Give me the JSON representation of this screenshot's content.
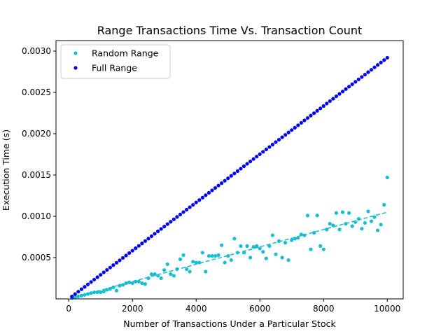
{
  "chart_data": {
    "type": "scatter",
    "title": "Range Transactions Time Vs. Transaction Count",
    "xlabel": "Number of Transactions Under a Particular Stock",
    "ylabel": "Execution Time (s)",
    "xlim": [
      -400,
      10500
    ],
    "ylim": [
      0,
      0.003
    ],
    "x_ticks": [
      0,
      2000,
      4000,
      6000,
      8000,
      10000
    ],
    "y_ticks": [
      0.0005,
      0.001,
      0.0015,
      0.002,
      0.0025,
      0.003
    ],
    "x_tick_labels": [
      "0",
      "2000",
      "4000",
      "6000",
      "8000",
      "10000"
    ],
    "y_tick_labels": [
      "0.0005",
      "0.0010",
      "0.0015",
      "0.0020",
      "0.0025",
      "0.0030"
    ],
    "legend_position": "top-left",
    "series": [
      {
        "name": "Random Range",
        "color": "#17becf",
        "marker": "dot",
        "fit_line": {
          "style": "dashed",
          "from": [
            100,
            1e-05
          ],
          "to": [
            10000,
            0.00105
          ]
        },
        "x": [
          100,
          200,
          300,
          400,
          500,
          600,
          700,
          800,
          900,
          1000,
          1100,
          1200,
          1300,
          1400,
          1500,
          1600,
          1700,
          1800,
          1900,
          2000,
          2100,
          2200,
          2300,
          2400,
          2500,
          2600,
          2700,
          2800,
          2900,
          3000,
          3100,
          3200,
          3300,
          3400,
          3500,
          3600,
          3700,
          3800,
          3900,
          4000,
          4100,
          4200,
          4300,
          4400,
          4500,
          4600,
          4700,
          4800,
          4900,
          5000,
          5100,
          5200,
          5300,
          5400,
          5500,
          5600,
          5700,
          5800,
          5900,
          6000,
          6100,
          6200,
          6300,
          6400,
          6500,
          6600,
          6700,
          6800,
          6900,
          7000,
          7100,
          7200,
          7300,
          7400,
          7500,
          7600,
          7700,
          7800,
          7900,
          8000,
          8100,
          8200,
          8300,
          8400,
          8500,
          8600,
          8700,
          8800,
          8900,
          9000,
          9100,
          9200,
          9300,
          9400,
          9500,
          9600,
          9700,
          9800,
          9900,
          10000
        ],
        "y": [
          1e-05,
          2e-05,
          3e-05,
          4e-05,
          5e-05,
          6e-05,
          7e-05,
          8e-05,
          8e-05,
          8e-05,
          9e-05,
          0.00011,
          0.00012,
          0.00014,
          0.0001,
          0.00016,
          0.00017,
          0.00019,
          0.0002,
          0.00019,
          0.00021,
          0.00021,
          0.00019,
          0.00018,
          0.00025,
          0.0003,
          0.0003,
          0.00028,
          0.00025,
          0.00035,
          0.00042,
          0.0003,
          0.00028,
          0.00036,
          0.00048,
          0.00053,
          0.00036,
          0.00033,
          0.00045,
          0.00044,
          0.00044,
          0.00056,
          0.00033,
          0.00052,
          0.00052,
          0.00052,
          0.00053,
          0.00065,
          0.00044,
          0.00052,
          0.00047,
          0.00073,
          0.00056,
          0.00064,
          0.00056,
          0.00064,
          0.0005,
          0.00063,
          0.00064,
          0.00061,
          0.00057,
          0.00049,
          0.00064,
          0.00077,
          0.00054,
          0.0007,
          0.0005,
          0.00068,
          0.00047,
          0.00071,
          0.00073,
          0.00074,
          0.00078,
          0.00077,
          0.00101,
          0.0006,
          0.0008,
          0.00101,
          0.00064,
          0.0006,
          0.00084,
          0.00091,
          0.00089,
          0.00104,
          0.00084,
          0.00105,
          0.00091,
          0.00104,
          0.00088,
          0.00093,
          0.00097,
          0.00085,
          0.00092,
          0.00106,
          0.00094,
          0.00099,
          0.00083,
          0.0009,
          0.00114,
          0.00147
        ]
      },
      {
        "name": "Full Range",
        "color": "#0000ee",
        "marker": "dot",
        "x": [
          100,
          200,
          300,
          400,
          500,
          600,
          700,
          800,
          900,
          1000,
          1100,
          1200,
          1300,
          1400,
          1500,
          1600,
          1700,
          1800,
          1900,
          2000,
          2100,
          2200,
          2300,
          2400,
          2500,
          2600,
          2700,
          2800,
          2900,
          3000,
          3100,
          3200,
          3300,
          3400,
          3500,
          3600,
          3700,
          3800,
          3900,
          4000,
          4100,
          4200,
          4300,
          4400,
          4500,
          4600,
          4700,
          4800,
          4900,
          5000,
          5100,
          5200,
          5300,
          5400,
          5500,
          5600,
          5700,
          5800,
          5900,
          6000,
          6100,
          6200,
          6300,
          6400,
          6500,
          6600,
          6700,
          6800,
          6900,
          7000,
          7100,
          7200,
          7300,
          7400,
          7500,
          7600,
          7700,
          7800,
          7900,
          8000,
          8100,
          8200,
          8300,
          8400,
          8500,
          8600,
          8700,
          8800,
          8900,
          9000,
          9100,
          9200,
          9300,
          9400,
          9500,
          9600,
          9700,
          9800,
          9900,
          10000
        ],
        "y": [
          2.92e-05,
          5.84e-05,
          8.76e-05,
          0.0001168,
          0.000146,
          0.0001752,
          0.0002044,
          0.0002336,
          0.0002628,
          0.000292,
          0.0003212,
          0.0003504,
          0.0003796,
          0.0004088,
          0.000438,
          0.0004672,
          0.0004964,
          0.0005256,
          0.0005548,
          0.000584,
          0.0006132,
          0.0006424,
          0.0006716,
          0.0007008,
          0.00073,
          0.0007592,
          0.0007884,
          0.0008176,
          0.0008468,
          0.000876,
          0.0009052,
          0.0009344,
          0.0009636,
          0.0009928,
          0.001022,
          0.0010512,
          0.0010804,
          0.0011096,
          0.0011388,
          0.001168,
          0.0011972,
          0.0012264,
          0.0012556,
          0.0012848,
          0.001314,
          0.0013432,
          0.0013724,
          0.0014016,
          0.0014308,
          0.00146,
          0.0014892,
          0.0015184,
          0.0015476,
          0.0015768,
          0.001606,
          0.0016352,
          0.0016644,
          0.0016936,
          0.0017228,
          0.001752,
          0.0017812,
          0.0018104,
          0.0018396,
          0.0018688,
          0.001898,
          0.0019272,
          0.0019564,
          0.0019856,
          0.0020148,
          0.002044,
          0.0020732,
          0.0021024,
          0.0021316,
          0.0021608,
          0.00219,
          0.0022192,
          0.0022484,
          0.0022776,
          0.0023068,
          0.002336,
          0.0023652,
          0.0023944,
          0.0024236,
          0.0024528,
          0.002482,
          0.0025112,
          0.0025404,
          0.0025696,
          0.0025988,
          0.002628,
          0.0026572,
          0.0026864,
          0.0027156,
          0.0027448,
          0.002774,
          0.0028032,
          0.0028324,
          0.0028616,
          0.0028908,
          0.00292
        ]
      }
    ]
  }
}
